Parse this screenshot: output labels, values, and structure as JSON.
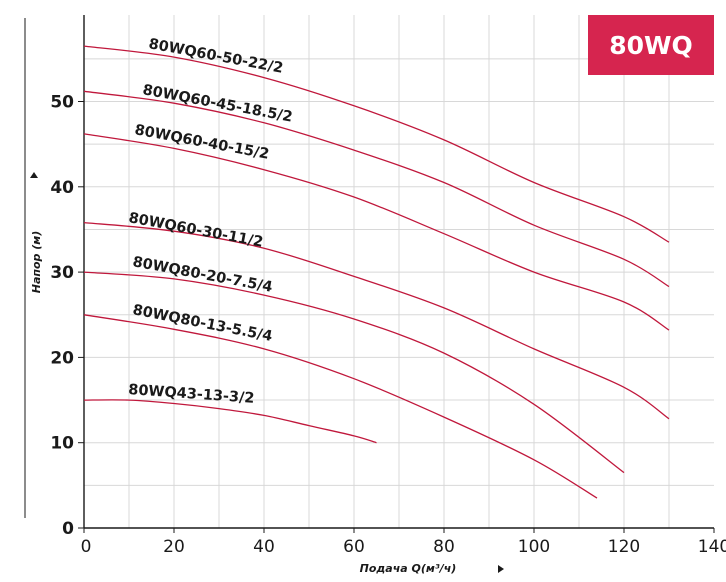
{
  "badge": {
    "text": "80WQ",
    "color": "#d6254f"
  },
  "curve_color": "#c0183c",
  "chart_data": {
    "type": "line",
    "title": "",
    "xlabel": "Подача Q(м³/ч)",
    "ylabel": "Напор (м)",
    "xlim": [
      0,
      140
    ],
    "ylim": [
      0,
      60
    ],
    "xticks": [
      0,
      20,
      40,
      60,
      80,
      100,
      120,
      140
    ],
    "yticks": [
      0,
      10,
      20,
      30,
      40,
      50
    ],
    "grid": true,
    "legend": "none",
    "series": [
      {
        "name": "80WQ60-50-22/2",
        "x": [
          0,
          20,
          40,
          60,
          80,
          100,
          120,
          130
        ],
        "y": [
          56.5,
          55.2,
          52.8,
          49.5,
          45.5,
          40.5,
          36.5,
          33.5
        ]
      },
      {
        "name": "80WQ60-45-18.5/2",
        "x": [
          0,
          20,
          40,
          60,
          80,
          100,
          120,
          130
        ],
        "y": [
          51.2,
          49.8,
          47.5,
          44.3,
          40.5,
          35.5,
          31.5,
          28.3
        ]
      },
      {
        "name": "80WQ60-40-15/2",
        "x": [
          0,
          20,
          40,
          60,
          80,
          100,
          120,
          130
        ],
        "y": [
          46.2,
          44.5,
          42.0,
          38.8,
          34.5,
          30.0,
          26.5,
          23.2
        ]
      },
      {
        "name": "80WQ60-30-11/2",
        "x": [
          0,
          20,
          40,
          60,
          80,
          100,
          120,
          130
        ],
        "y": [
          35.8,
          34.8,
          32.8,
          29.5,
          25.8,
          21.0,
          16.5,
          12.8
        ]
      },
      {
        "name": "80WQ80-20-7.5/4",
        "x": [
          0,
          20,
          40,
          60,
          80,
          100,
          120
        ],
        "y": [
          30.0,
          29.2,
          27.3,
          24.5,
          20.5,
          14.5,
          6.5
        ]
      },
      {
        "name": "80WQ80-13-5.5/4",
        "x": [
          0,
          20,
          40,
          60,
          80,
          100,
          114
        ],
        "y": [
          25.0,
          23.3,
          21.0,
          17.5,
          13.0,
          8.0,
          3.5
        ]
      },
      {
        "name": "80WQ43-13-3/2",
        "x": [
          0,
          10,
          20,
          30,
          40,
          50,
          60,
          65
        ],
        "y": [
          15.0,
          15.0,
          14.6,
          14.0,
          13.2,
          12.0,
          10.8,
          10.0
        ]
      }
    ]
  }
}
